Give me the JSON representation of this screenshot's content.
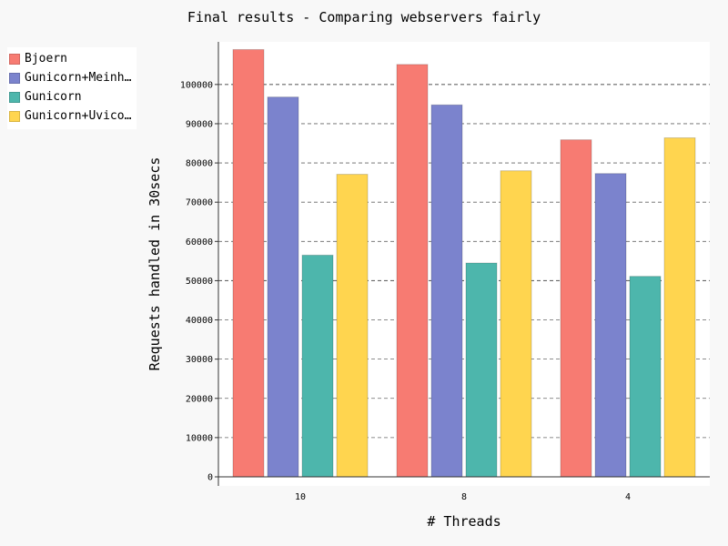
{
  "chart_data": {
    "type": "bar",
    "title": "Final results - Comparing webservers fairly",
    "xlabel": "# Threads",
    "ylabel": "Requests handled in 30secs",
    "categories": [
      "10",
      "8",
      "4"
    ],
    "series": [
      {
        "name": "Bjoern",
        "legend_label": "Bjoern",
        "color": "#f77b72",
        "values": [
          108900,
          105100,
          85900
        ]
      },
      {
        "name": "Gunicorn+Meinheld",
        "legend_label": "Gunicorn+Meinh…",
        "color": "#7b83cd",
        "values": [
          96800,
          94800,
          77300
        ]
      },
      {
        "name": "Gunicorn",
        "legend_label": "Gunicorn",
        "color": "#4db6ac",
        "values": [
          56500,
          54500,
          51100
        ]
      },
      {
        "name": "Gunicorn+Uvicorn",
        "legend_label": "Gunicorn+Uvico…",
        "color": "#ffd54f",
        "values": [
          77100,
          78000,
          86400
        ]
      }
    ],
    "ylim": [
      0,
      110000
    ],
    "yticks": [
      0,
      10000,
      20000,
      30000,
      40000,
      50000,
      60000,
      70000,
      80000,
      90000,
      100000
    ],
    "grid": true,
    "legend_position": "top-left"
  }
}
